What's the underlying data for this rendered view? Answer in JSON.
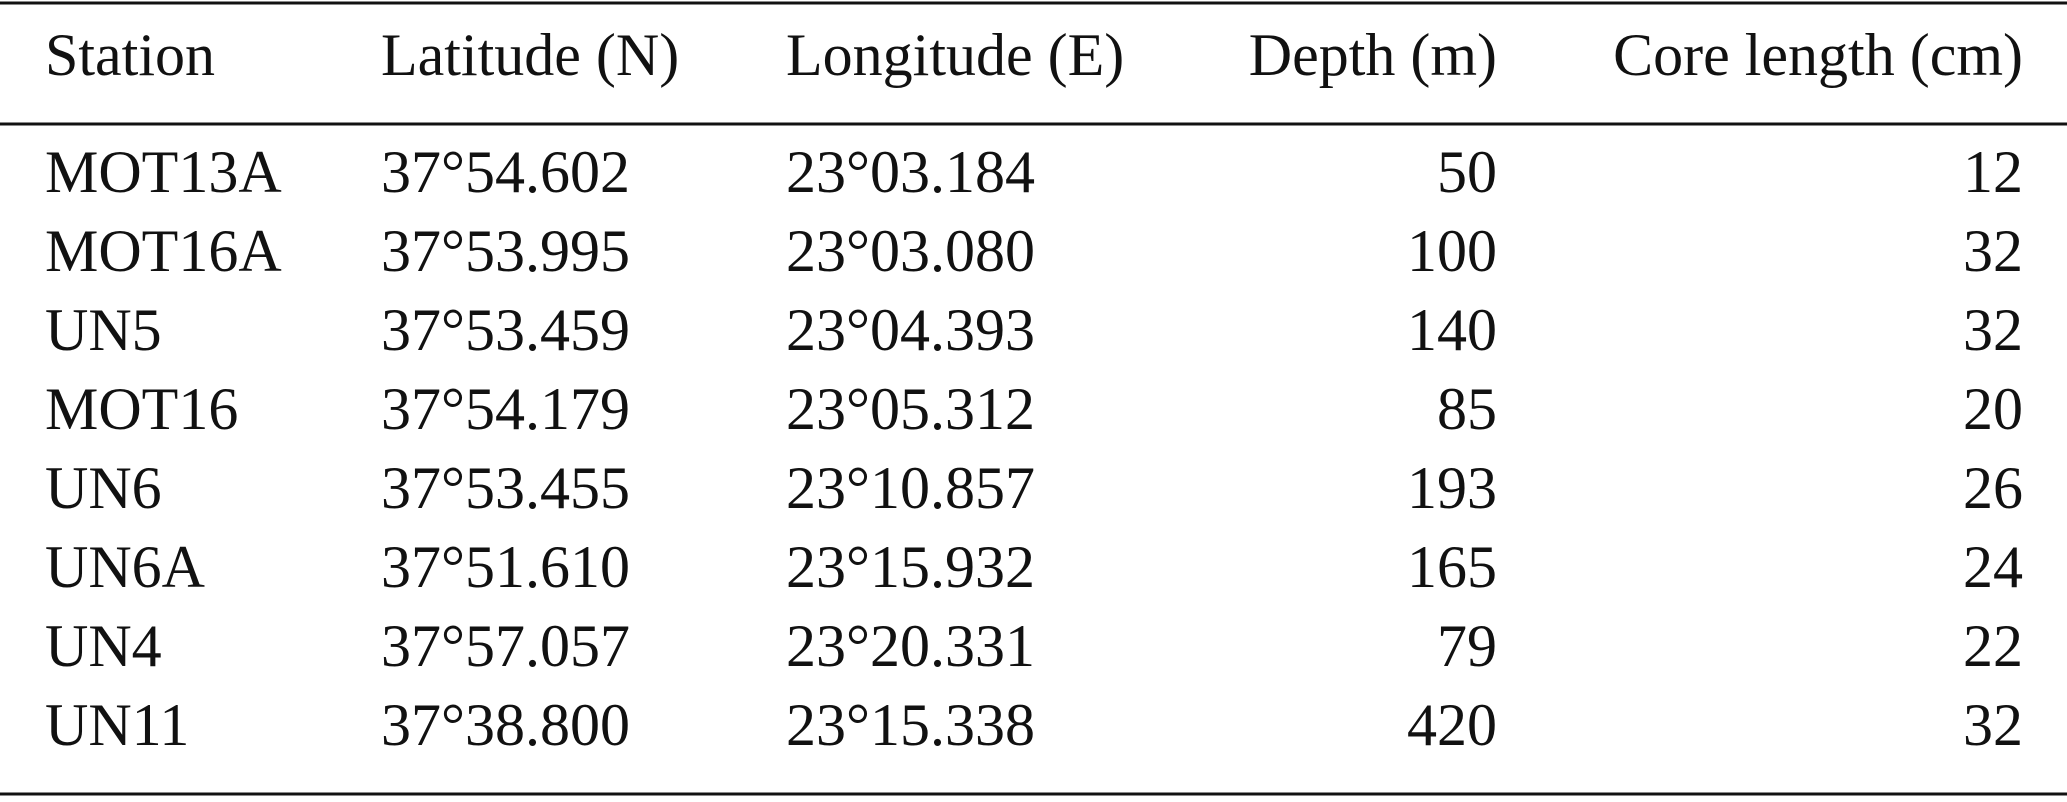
{
  "table": {
    "headers": [
      "Station",
      "Latitude (N)",
      "Longitude (E)",
      "Depth (m)",
      "Core length (cm)"
    ],
    "rows": [
      [
        "MOT13A",
        "37°54.602",
        "23°03.184",
        50,
        12
      ],
      [
        "MOT16A",
        "37°53.995",
        "23°03.080",
        100,
        32
      ],
      [
        "UN5",
        "37°53.459",
        "23°04.393",
        140,
        32
      ],
      [
        "MOT16",
        "37°54.179",
        "23°05.312",
        85,
        20
      ],
      [
        "UN6",
        "37°53.455",
        "23°10.857",
        193,
        26
      ],
      [
        "UN6A",
        "37°51.610",
        "23°15.932",
        165,
        24
      ],
      [
        "UN4",
        "37°57.057",
        "23°20.331",
        79,
        22
      ],
      [
        "UN11",
        "37°38.800",
        "23°15.338",
        420,
        32
      ]
    ]
  }
}
